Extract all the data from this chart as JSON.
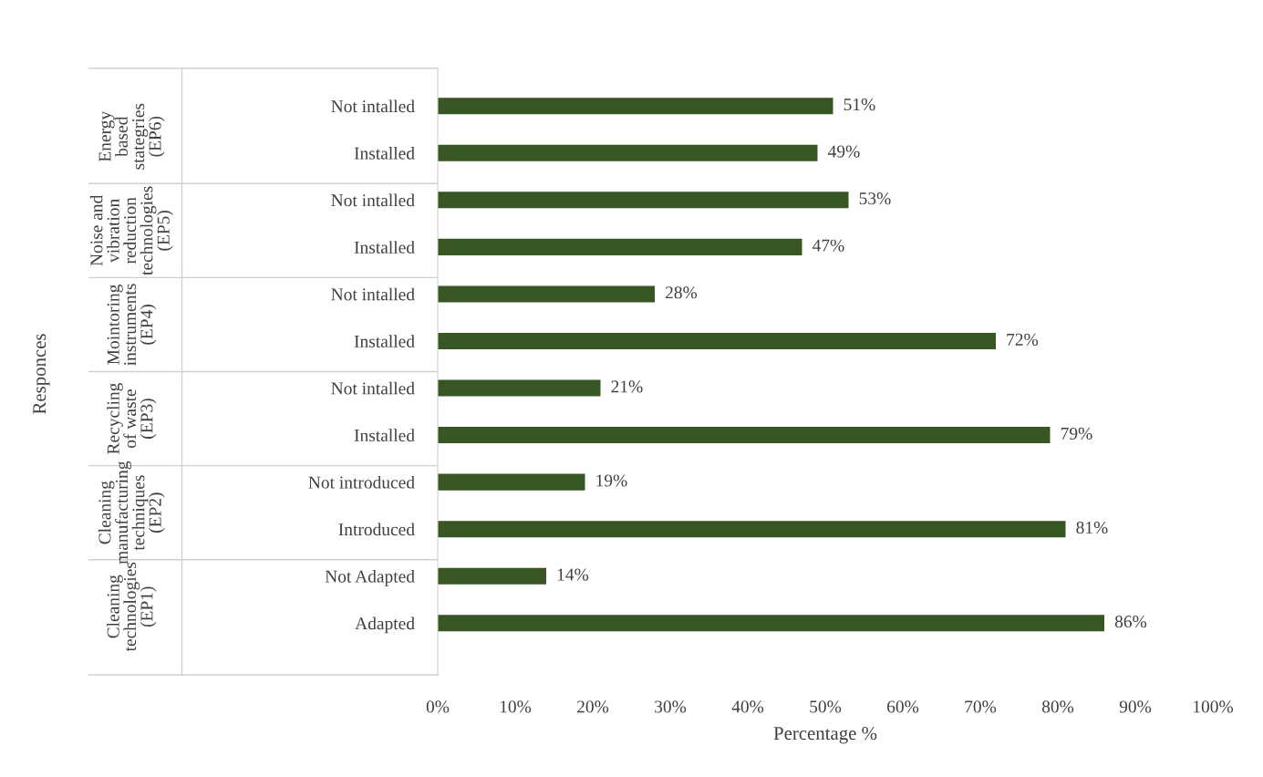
{
  "chart_data": {
    "type": "bar",
    "orientation": "horizontal",
    "categories": [
      "Not intalled",
      "Installed",
      "Not intalled",
      "Installed",
      "Not intalled",
      "Installed",
      "Not intalled",
      "Installed",
      "Not introduced",
      "Introduced",
      "Not Adapted",
      "Adapted"
    ],
    "values": [
      51,
      49,
      53,
      47,
      28,
      72,
      21,
      79,
      19,
      81,
      14,
      86
    ],
    "value_labels": [
      "51%",
      "49%",
      "53%",
      "47%",
      "28%",
      "72%",
      "21%",
      "79%",
      "19%",
      "81%",
      "14%",
      "86%"
    ],
    "color": "#375623",
    "xlim": [
      0,
      100
    ],
    "xticks": [
      {
        "value": 0,
        "label": "0%"
      },
      {
        "value": 10,
        "label": "10%"
      },
      {
        "value": 20,
        "label": "20%"
      },
      {
        "value": 30,
        "label": "30%"
      },
      {
        "value": 40,
        "label": "40%"
      },
      {
        "value": 50,
        "label": "50%"
      },
      {
        "value": 60,
        "label": "60%"
      },
      {
        "value": 70,
        "label": "70%"
      },
      {
        "value": 80,
        "label": "80%"
      },
      {
        "value": 90,
        "label": "90%"
      },
      {
        "value": 100,
        "label": "100%"
      }
    ],
    "xlabel": "Percentage %",
    "annotations": [
      "Responces",
      "Energy\nbased\nstategries\n(EP6)",
      "Noise and\nvibration\nreduction\ntechnologies\n(EP5)",
      "Mointoring\ninstruments\n(EP4)",
      "Recycling\nof waste\n(EP3)",
      "Cleaning\nmanufacturing\ntechniques\n(EP2)",
      "Cleaning\ntechnologies\n(EP1)"
    ],
    "grid": false,
    "legend": false
  }
}
